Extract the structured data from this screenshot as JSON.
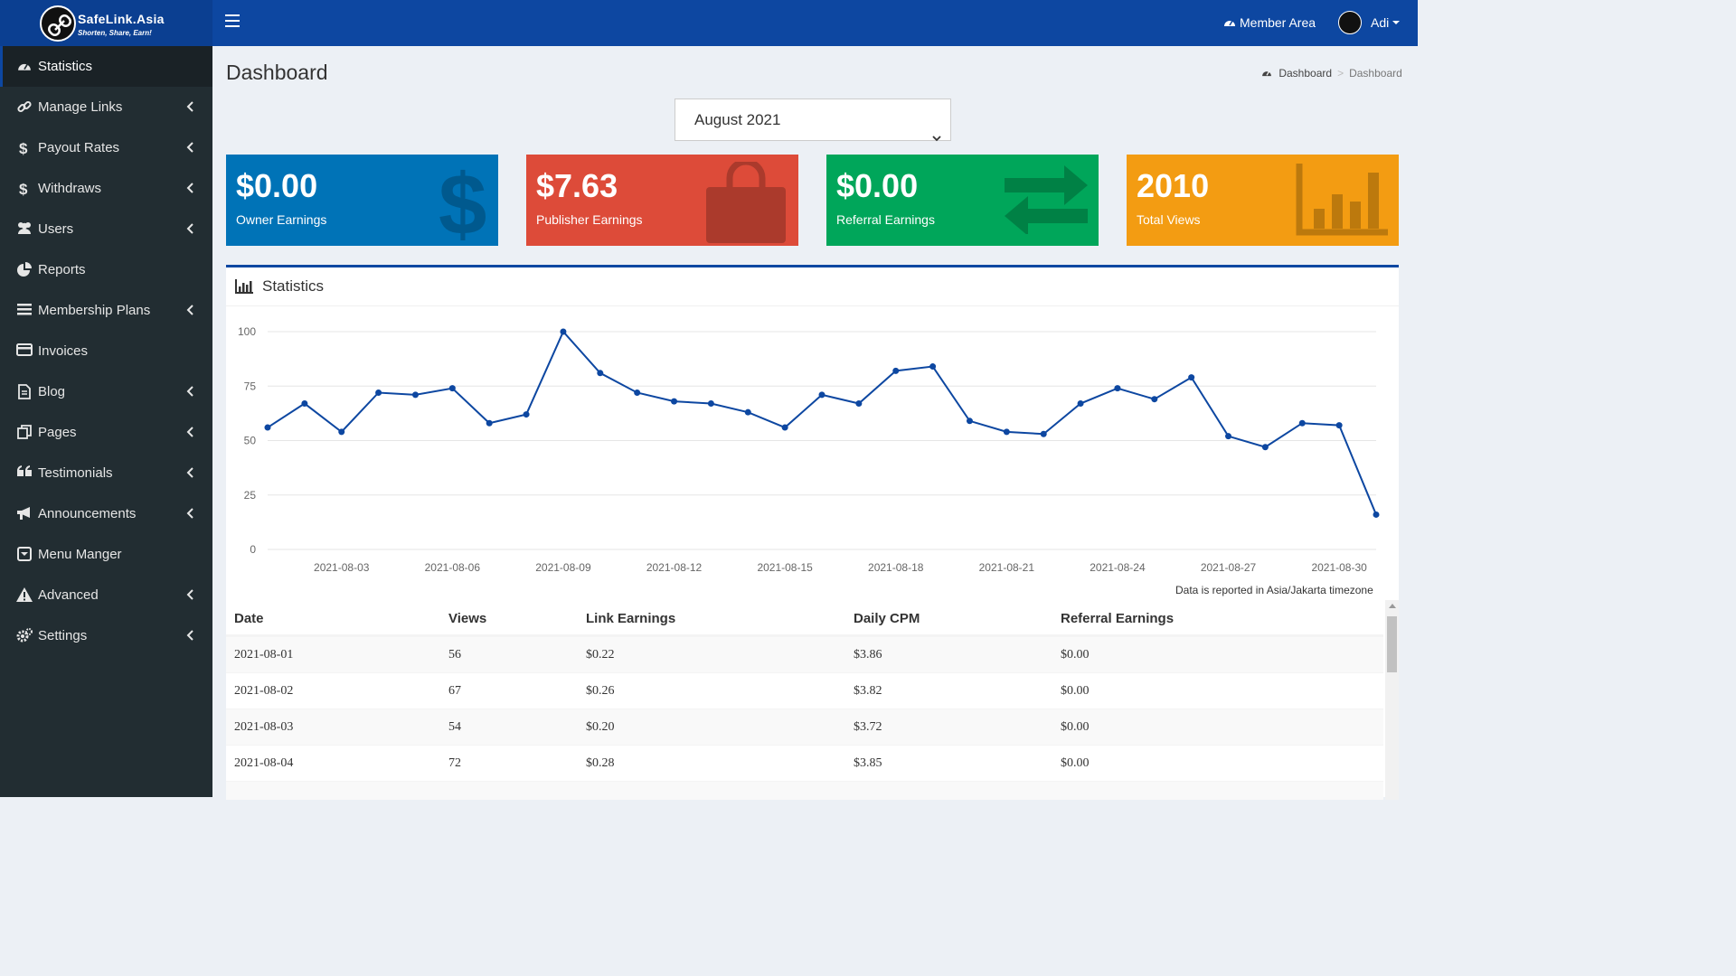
{
  "brand": {
    "name": "SafeLink.Asia",
    "tagline": "Shorten, Share, Earn!",
    "colors": {
      "primary": "#0d47a1",
      "sidebar": "#222d32"
    }
  },
  "header": {
    "member_area": "Member Area",
    "member_icon": "dashboard-icon",
    "user_name": "Adi"
  },
  "sidebar": {
    "items": [
      {
        "label": "Statistics",
        "icon": "dashboard-icon",
        "submenu": false,
        "active": true
      },
      {
        "label": "Manage Links",
        "icon": "link-icon",
        "submenu": true
      },
      {
        "label": "Payout Rates",
        "icon": "dollar-icon",
        "submenu": true
      },
      {
        "label": "Withdraws",
        "icon": "dollar-icon",
        "submenu": true
      },
      {
        "label": "Users",
        "icon": "users-icon",
        "submenu": true
      },
      {
        "label": "Reports",
        "icon": "pie-chart-icon",
        "submenu": false
      },
      {
        "label": "Membership Plans",
        "icon": "list-icon",
        "submenu": true
      },
      {
        "label": "Invoices",
        "icon": "credit-card-icon",
        "submenu": false
      },
      {
        "label": "Blog",
        "icon": "file-icon",
        "submenu": true
      },
      {
        "label": "Pages",
        "icon": "copy-icon",
        "submenu": true
      },
      {
        "label": "Testimonials",
        "icon": "quote-icon",
        "submenu": true
      },
      {
        "label": "Announcements",
        "icon": "bullhorn-icon",
        "submenu": true
      },
      {
        "label": "Menu Manger",
        "icon": "caret-square-icon",
        "submenu": false
      },
      {
        "label": "Advanced",
        "icon": "warning-icon",
        "submenu": true
      },
      {
        "label": "Settings",
        "icon": "cogs-icon",
        "submenu": true
      }
    ]
  },
  "page": {
    "title": "Dashboard",
    "breadcrumb": [
      "Dashboard",
      "Dashboard"
    ],
    "month_select": "August 2021"
  },
  "cards": [
    {
      "value": "$0.00",
      "label": "Owner Earnings",
      "color": "#0073b7",
      "icon": "dollar-icon"
    },
    {
      "value": "$7.63",
      "label": "Publisher Earnings",
      "color": "#dd4b39",
      "icon": "shopping-bag-icon"
    },
    {
      "value": "$0.00",
      "label": "Referral Earnings",
      "color": "#00a65a",
      "icon": "exchange-icon"
    },
    {
      "value": "2010",
      "label": "Total Views",
      "color": "#f39c12",
      "icon": "bar-chart-icon"
    }
  ],
  "stats": {
    "title": "Statistics",
    "timezone_note": "Data is reported in Asia/Jakarta timezone",
    "table": {
      "columns": [
        "Date",
        "Views",
        "Link Earnings",
        "Daily CPM",
        "Referral Earnings"
      ],
      "rows": [
        [
          "2021-08-01",
          "56",
          "$0.22",
          "$3.86",
          "$0.00"
        ],
        [
          "2021-08-02",
          "67",
          "$0.26",
          "$3.82",
          "$0.00"
        ],
        [
          "2021-08-03",
          "54",
          "$0.20",
          "$3.72",
          "$0.00"
        ],
        [
          "2021-08-04",
          "72",
          "$0.28",
          "$3.85",
          "$0.00"
        ]
      ]
    }
  },
  "chart_data": {
    "type": "line",
    "x": [
      "2021-08-01",
      "2021-08-02",
      "2021-08-03",
      "2021-08-04",
      "2021-08-05",
      "2021-08-06",
      "2021-08-07",
      "2021-08-08",
      "2021-08-09",
      "2021-08-10",
      "2021-08-11",
      "2021-08-12",
      "2021-08-13",
      "2021-08-14",
      "2021-08-15",
      "2021-08-16",
      "2021-08-17",
      "2021-08-18",
      "2021-08-19",
      "2021-08-20",
      "2021-08-21",
      "2021-08-22",
      "2021-08-23",
      "2021-08-24",
      "2021-08-25",
      "2021-08-26",
      "2021-08-27",
      "2021-08-28",
      "2021-08-29",
      "2021-08-30",
      "2021-08-31"
    ],
    "series": [
      {
        "values": [
          56,
          67,
          54,
          72,
          71,
          74,
          58,
          62,
          100,
          81,
          72,
          68,
          67,
          63,
          56,
          71,
          67,
          82,
          84,
          59,
          54,
          53,
          67,
          74,
          69,
          79,
          52,
          47,
          58,
          57,
          16
        ]
      }
    ],
    "xticks": [
      "2021-08-03",
      "2021-08-06",
      "2021-08-09",
      "2021-08-12",
      "2021-08-15",
      "2021-08-18",
      "2021-08-21",
      "2021-08-24",
      "2021-08-27",
      "2021-08-30"
    ],
    "yticks": [
      0,
      25,
      50,
      75,
      100
    ],
    "ylim": [
      0,
      100
    ],
    "grid": true,
    "color": "#0d47a1"
  }
}
